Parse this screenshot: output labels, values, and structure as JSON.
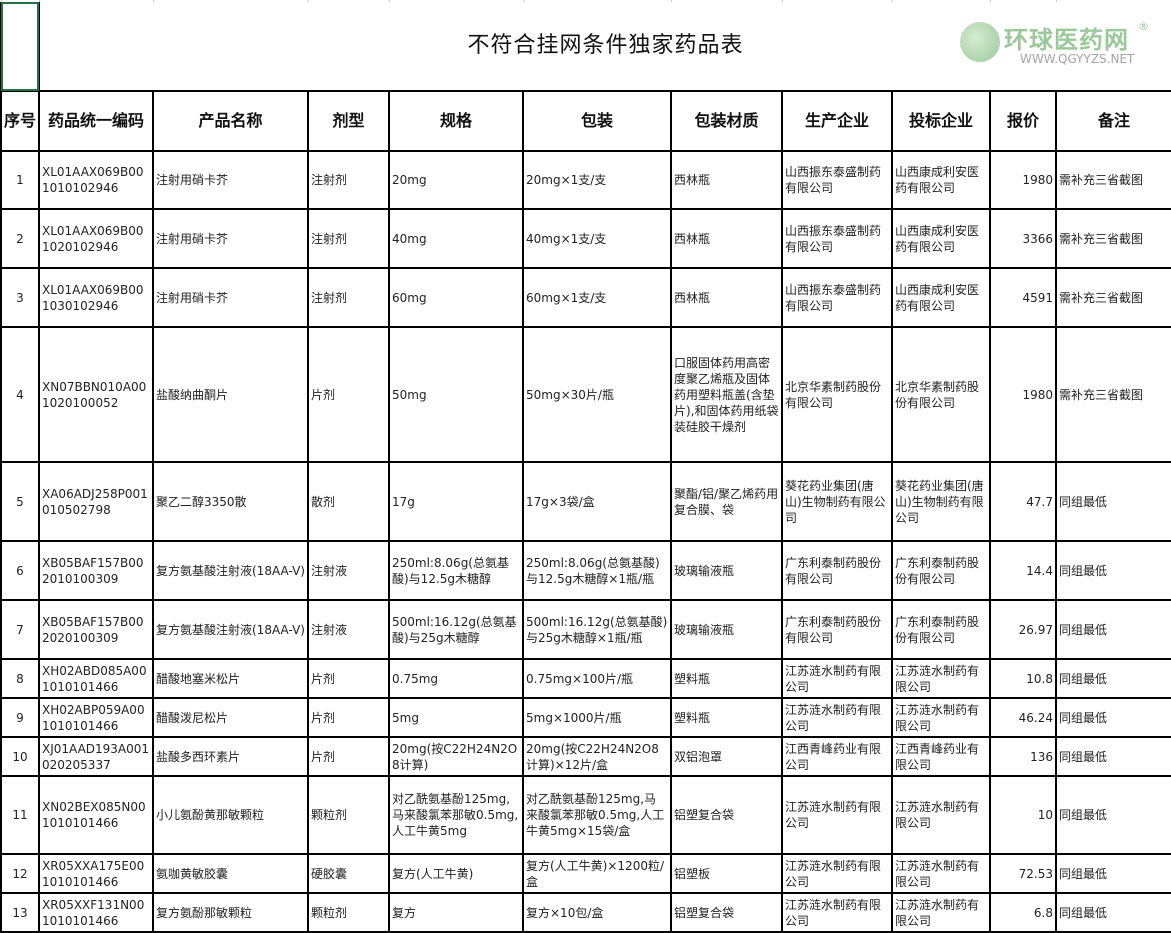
{
  "title": "不符合挂网条件独家药品表",
  "headers": [
    "序号",
    "药品统一编码",
    "产品名称",
    "剂型",
    "规格",
    "包装",
    "包装材质",
    "生产企业",
    "投标企业",
    "报价",
    "备注"
  ],
  "rows": [
    {
      "no": "1",
      "code": "XL01AAX069B001010102946",
      "name": "注射用硝卡芥",
      "form": "注射剂",
      "spec": "20mg",
      "pack": "20mg×1支/支",
      "material": "西林瓶",
      "maker": "山西振东泰盛制药有限公司",
      "bidder": "山西康成利安医药有限公司",
      "price": "1980",
      "note": "需补充三省截图"
    },
    {
      "no": "2",
      "code": "XL01AAX069B001020102946",
      "name": "注射用硝卡芥",
      "form": "注射剂",
      "spec": "40mg",
      "pack": "40mg×1支/支",
      "material": "西林瓶",
      "maker": "山西振东泰盛制药有限公司",
      "bidder": "山西康成利安医药有限公司",
      "price": "3366",
      "note": "需补充三省截图"
    },
    {
      "no": "3",
      "code": "XL01AAX069B001030102946",
      "name": "注射用硝卡芥",
      "form": "注射剂",
      "spec": "60mg",
      "pack": "60mg×1支/支",
      "material": "西林瓶",
      "maker": "山西振东泰盛制药有限公司",
      "bidder": "山西康成利安医药有限公司",
      "price": "4591",
      "note": "需补充三省截图"
    },
    {
      "no": "4",
      "code": "XN07BBN010A001020100052",
      "name": "盐酸纳曲酮片",
      "form": "片剂",
      "spec": "50mg",
      "pack": "50mg×30片/瓶",
      "material": "口服固体药用高密度聚乙烯瓶及固体药用塑料瓶盖(含垫片),和固体药用纸袋装硅胶干燥剂",
      "maker": "北京华素制药股份有限公司",
      "bidder": "北京华素制药股份有限公司",
      "price": "1980",
      "note": "需补充三省截图"
    },
    {
      "no": "5",
      "code": "XA06ADJ258P001010502798",
      "name": "聚乙二醇3350散",
      "form": "散剂",
      "spec": "17g",
      "pack": "17g×3袋/盒",
      "material": "聚酯/铝/聚乙烯药用复合膜、袋",
      "maker": "葵花药业集团(唐山)生物制药有限公司",
      "bidder": "葵花药业集团(唐山)生物制药有限公司",
      "price": "47.7",
      "note": "同组最低"
    },
    {
      "no": "6",
      "code": "XB05BAF157B002010100309",
      "name": "复方氨基酸注射液(18AA-V)",
      "form": "注射液",
      "spec": "250ml:8.06g(总氨基酸)与12.5g木糖醇",
      "pack": "250ml:8.06g(总氨基酸)与12.5g木糖醇×1瓶/瓶",
      "material": "玻璃输液瓶",
      "maker": "广东利泰制药股份有限公司",
      "bidder": "广东利泰制药股份有限公司",
      "price": "14.4",
      "note": "同组最低"
    },
    {
      "no": "7",
      "code": "XB05BAF157B002020100309",
      "name": "复方氨基酸注射液(18AA-V)",
      "form": "注射液",
      "spec": "500ml:16.12g(总氨基酸)与25g木糖醇",
      "pack": "500ml:16.12g(总氨基酸)与25g木糖醇×1瓶/瓶",
      "material": "玻璃输液瓶",
      "maker": "广东利泰制药股份有限公司",
      "bidder": "广东利泰制药股份有限公司",
      "price": "26.97",
      "note": "同组最低"
    },
    {
      "no": "8",
      "code": "XH02ABD085A001010101466",
      "name": "醋酸地塞米松片",
      "form": "片剂",
      "spec": "0.75mg",
      "pack": "0.75mg×100片/瓶",
      "material": "塑料瓶",
      "maker": "江苏涟水制药有限公司",
      "bidder": "江苏涟水制药有限公司",
      "price": "10.8",
      "note": "同组最低"
    },
    {
      "no": "9",
      "code": "XH02ABP059A001010101466",
      "name": "醋酸泼尼松片",
      "form": "片剂",
      "spec": "5mg",
      "pack": "5mg×1000片/瓶",
      "material": "塑料瓶",
      "maker": "江苏涟水制药有限公司",
      "bidder": "江苏涟水制药有限公司",
      "price": "46.24",
      "note": "同组最低"
    },
    {
      "no": "10",
      "code": "XJ01AAD193A001020205337",
      "name": "盐酸多西环素片",
      "form": "片剂",
      "spec": "20mg(按C22H24N2O8计算)",
      "pack": "20mg(按C22H24N2O8计算)×12片/盒",
      "material": "双铝泡罩",
      "maker": "江西青峰药业有限公司",
      "bidder": "江西青峰药业有限公司",
      "price": "136",
      "note": "同组最低"
    },
    {
      "no": "11",
      "code": "XN02BEX085N001010101466",
      "name": "小儿氨酚黄那敏颗粒",
      "form": "颗粒剂",
      "spec": "对乙酰氨基酚125mg,马来酸氯苯那敏0.5mg,人工牛黄5mg",
      "pack": "对乙酰氨基酚125mg,马来酸氯苯那敏0.5mg,人工牛黄5mg×15袋/盒",
      "material": "铝塑复合袋",
      "maker": "江苏涟水制药有限公司",
      "bidder": "江苏涟水制药有限公司",
      "price": "10",
      "note": "同组最低"
    },
    {
      "no": "12",
      "code": "XR05XXA175E001010101466",
      "name": "氨咖黄敏胶囊",
      "form": "硬胶囊",
      "spec": "复方(人工牛黄)",
      "pack": "复方(人工牛黄)×1200粒/盒",
      "material": "铝塑板",
      "maker": "江苏涟水制药有限公司",
      "bidder": "江苏涟水制药有限公司",
      "price": "72.53",
      "note": "同组最低"
    },
    {
      "no": "13",
      "code": "XR05XXF131N001010101466",
      "name": "复方氨酚那敏颗粒",
      "form": "颗粒剂",
      "spec": "复方",
      "pack": "复方×10包/盒",
      "material": "铝塑复合袋",
      "maker": "江苏涟水制药有限公司",
      "bidder": "江苏涟水制药有限公司",
      "price": "6.8",
      "note": "同组最低"
    }
  ],
  "watermark": {
    "name": "环球医药网",
    "reg": "®",
    "url": "WWW.QGYYZS.NET"
  },
  "colors": {
    "selection": "#217346",
    "watermark": "#5aa55a"
  }
}
